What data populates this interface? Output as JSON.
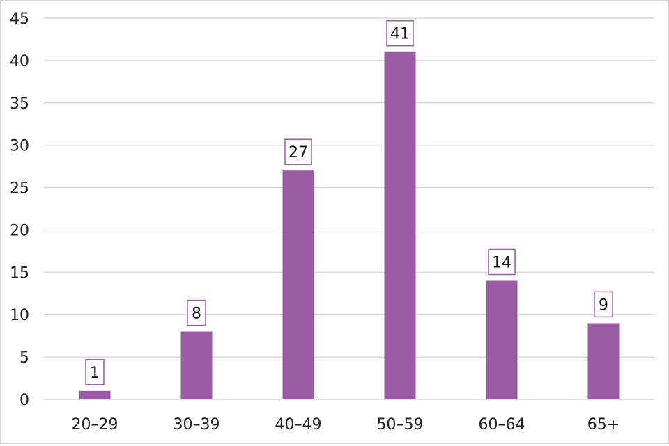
{
  "chart_data": {
    "type": "bar",
    "title": "",
    "xlabel": "",
    "ylabel": "",
    "categories": [
      "20–29",
      "30–39",
      "40–49",
      "50–59",
      "60–64",
      "65+"
    ],
    "values": [
      1,
      8,
      27,
      41,
      14,
      9
    ],
    "ylim": [
      0,
      45
    ],
    "yticks": [
      0,
      5,
      10,
      15,
      20,
      25,
      30,
      35,
      40,
      45
    ],
    "ytick_labels": [
      "0",
      "5",
      "10",
      "15",
      "20",
      "25",
      "30",
      "35",
      "40",
      "45"
    ],
    "data_labels": [
      "1",
      "8",
      "27",
      "41",
      "14",
      "9"
    ],
    "grid": true,
    "legend": "none",
    "colors": {
      "bar": "#9b5ba5",
      "label_border": "#9b5ba5",
      "gridline": "#d9d9d9",
      "axis_text": "#222222"
    }
  }
}
